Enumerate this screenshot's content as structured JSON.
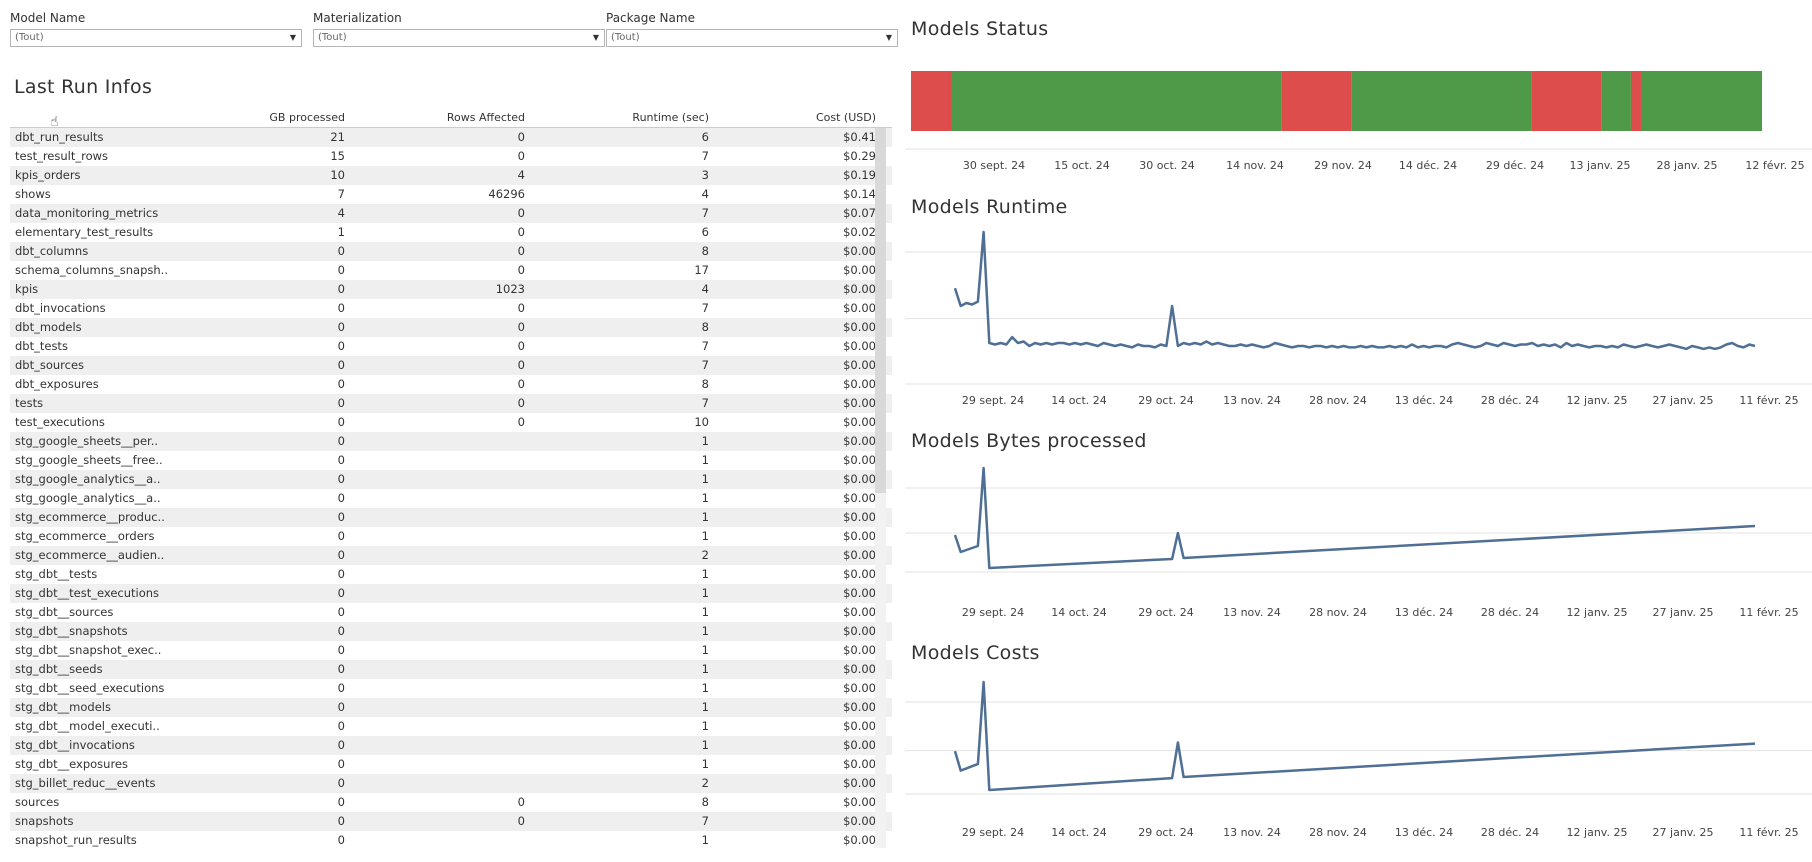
{
  "filters": [
    {
      "label": "Model Name",
      "value": "(Tout)"
    },
    {
      "label": "Materialization",
      "value": "(Tout)"
    },
    {
      "label": "Package Name",
      "value": "(Tout)"
    }
  ],
  "table": {
    "title": "Last Run Infos",
    "columns": [
      "",
      "GB processed",
      "Rows Affected",
      "Runtime (sec)",
      "Cost (USD)"
    ],
    "rows": [
      [
        "dbt_run_results",
        "21",
        "0",
        "6",
        "$0.41"
      ],
      [
        "test_result_rows",
        "15",
        "0",
        "7",
        "$0.29"
      ],
      [
        "kpis_orders",
        "10",
        "4",
        "3",
        "$0.19"
      ],
      [
        "shows",
        "7",
        "46296",
        "4",
        "$0.14"
      ],
      [
        "data_monitoring_metrics",
        "4",
        "0",
        "7",
        "$0.07"
      ],
      [
        "elementary_test_results",
        "1",
        "0",
        "6",
        "$0.02"
      ],
      [
        "dbt_columns",
        "0",
        "0",
        "8",
        "$0.00"
      ],
      [
        "schema_columns_snapsh..",
        "0",
        "0",
        "17",
        "$0.00"
      ],
      [
        "kpis",
        "0",
        "1023",
        "4",
        "$0.00"
      ],
      [
        "dbt_invocations",
        "0",
        "0",
        "7",
        "$0.00"
      ],
      [
        "dbt_models",
        "0",
        "0",
        "8",
        "$0.00"
      ],
      [
        "dbt_tests",
        "0",
        "0",
        "7",
        "$0.00"
      ],
      [
        "dbt_sources",
        "0",
        "0",
        "7",
        "$0.00"
      ],
      [
        "dbt_exposures",
        "0",
        "0",
        "8",
        "$0.00"
      ],
      [
        "tests",
        "0",
        "0",
        "7",
        "$0.00"
      ],
      [
        "test_executions",
        "0",
        "0",
        "10",
        "$0.00"
      ],
      [
        "stg_google_sheets__per..",
        "0",
        "",
        "1",
        "$0.00"
      ],
      [
        "stg_google_sheets__free..",
        "0",
        "",
        "1",
        "$0.00"
      ],
      [
        "stg_google_analytics__a..",
        "0",
        "",
        "1",
        "$0.00"
      ],
      [
        "stg_google_analytics__a..",
        "0",
        "",
        "1",
        "$0.00"
      ],
      [
        "stg_ecommerce__produc..",
        "0",
        "",
        "1",
        "$0.00"
      ],
      [
        "stg_ecommerce__orders",
        "0",
        "",
        "1",
        "$0.00"
      ],
      [
        "stg_ecommerce__audien..",
        "0",
        "",
        "2",
        "$0.00"
      ],
      [
        "stg_dbt__tests",
        "0",
        "",
        "1",
        "$0.00"
      ],
      [
        "stg_dbt__test_executions",
        "0",
        "",
        "1",
        "$0.00"
      ],
      [
        "stg_dbt__sources",
        "0",
        "",
        "1",
        "$0.00"
      ],
      [
        "stg_dbt__snapshots",
        "0",
        "",
        "1",
        "$0.00"
      ],
      [
        "stg_dbt__snapshot_exec..",
        "0",
        "",
        "1",
        "$0.00"
      ],
      [
        "stg_dbt__seeds",
        "0",
        "",
        "1",
        "$0.00"
      ],
      [
        "stg_dbt__seed_executions",
        "0",
        "",
        "1",
        "$0.00"
      ],
      [
        "stg_dbt__models",
        "0",
        "",
        "1",
        "$0.00"
      ],
      [
        "stg_dbt__model_executi..",
        "0",
        "",
        "1",
        "$0.00"
      ],
      [
        "stg_dbt__invocations",
        "0",
        "",
        "1",
        "$0.00"
      ],
      [
        "stg_dbt__exposures",
        "0",
        "",
        "1",
        "$0.00"
      ],
      [
        "stg_billet_reduc__events",
        "0",
        "",
        "2",
        "$0.00"
      ],
      [
        "sources",
        "0",
        "0",
        "8",
        "$0.00"
      ],
      [
        "snapshots",
        "0",
        "0",
        "7",
        "$0.00"
      ],
      [
        "snapshot_run_results",
        "0",
        "",
        "1",
        "$0.00"
      ]
    ]
  },
  "colors": {
    "success": "#4e9a48",
    "error": "#dc4d4c",
    "line": "#4f6f94",
    "grid": "#e3e3e3"
  },
  "charts": {
    "status": {
      "title": "Models Status",
      "ticks": [
        "30 sept. 24",
        "15 oct. 24",
        "30 oct. 24",
        "14 nov. 24",
        "29 nov. 24",
        "14 déc. 24",
        "29 déc. 24",
        "13 janv. 25",
        "28 janv. 25",
        "12 févr. 25"
      ]
    },
    "runtime": {
      "title": "Models Runtime"
    },
    "bytes": {
      "title": "Models Bytes processed"
    },
    "costs": {
      "title": "Models Costs"
    },
    "line_ticks": [
      "29 sept. 24",
      "14 oct. 24",
      "29 oct. 24",
      "13 nov. 24",
      "28 nov. 24",
      "13 déc. 24",
      "28 déc. 24",
      "12 janv. 25",
      "27 janv. 25",
      "11 févr. 25"
    ]
  },
  "chart_data": [
    {
      "type": "bar",
      "title": "Models Status",
      "x_ticks": [
        "30 sept. 24",
        "15 oct. 24",
        "30 oct. 24",
        "14 nov. 24",
        "29 nov. 24",
        "14 déc. 24",
        "29 déc. 24",
        "13 janv. 25",
        "28 janv. 25",
        "12 févr. 25"
      ],
      "segments": [
        {
          "status": "error",
          "from": 0.0,
          "to": 0.047
        },
        {
          "status": "success",
          "from": 0.047,
          "to": 0.435
        },
        {
          "status": "error",
          "from": 0.435,
          "to": 0.518
        },
        {
          "status": "success",
          "from": 0.518,
          "to": 0.729
        },
        {
          "status": "error",
          "from": 0.729,
          "to": 0.811
        },
        {
          "status": "success",
          "from": 0.811,
          "to": 0.846
        },
        {
          "status": "error",
          "from": 0.846,
          "to": 0.859
        },
        {
          "status": "success",
          "from": 0.859,
          "to": 1.0
        }
      ]
    },
    {
      "type": "line",
      "title": "Models Runtime",
      "x_ticks": [
        "29 sept. 24",
        "14 oct. 24",
        "29 oct. 24",
        "13 nov. 24",
        "28 nov. 24",
        "13 déc. 24",
        "28 déc. 24",
        "12 janv. 25",
        "27 janv. 25",
        "11 févr. 25"
      ],
      "x_days": [
        0,
        1,
        2,
        3,
        4,
        5,
        6,
        7,
        8,
        9,
        10,
        11,
        12,
        13,
        14,
        15,
        16,
        17,
        18,
        19,
        20,
        21,
        22,
        23,
        24,
        25,
        26,
        27,
        28,
        29,
        30,
        31,
        32,
        33,
        34,
        35,
        36,
        37,
        38,
        39,
        40,
        41,
        42,
        43,
        44,
        45,
        46,
        47,
        48,
        49,
        50,
        51,
        52,
        53,
        54,
        55,
        56,
        57,
        58,
        59,
        60,
        61,
        62,
        63,
        64,
        65,
        66,
        67,
        68,
        69,
        70,
        71,
        72,
        73,
        74,
        75,
        76,
        77,
        78,
        79,
        80,
        81,
        82,
        83,
        84,
        85,
        86,
        87,
        88,
        89,
        90,
        91,
        92,
        93,
        94,
        95,
        96,
        97,
        98,
        99,
        100,
        101,
        102,
        103,
        104,
        105,
        106,
        107,
        108,
        109,
        110,
        111,
        112,
        113,
        114,
        115,
        116,
        117,
        118,
        119,
        120,
        121,
        122,
        123,
        124,
        125,
        126,
        127,
        128,
        129,
        130,
        131,
        132,
        133,
        134,
        135,
        136,
        137,
        138,
        139,
        140
      ],
      "values": [
        0.62,
        0.5,
        0.52,
        0.51,
        0.53,
        1.0,
        0.25,
        0.24,
        0.25,
        0.24,
        0.29,
        0.25,
        0.26,
        0.23,
        0.25,
        0.24,
        0.25,
        0.24,
        0.25,
        0.25,
        0.24,
        0.25,
        0.24,
        0.25,
        0.24,
        0.23,
        0.25,
        0.24,
        0.23,
        0.24,
        0.23,
        0.22,
        0.24,
        0.23,
        0.23,
        0.22,
        0.24,
        0.23,
        0.5,
        0.23,
        0.25,
        0.24,
        0.25,
        0.24,
        0.26,
        0.24,
        0.25,
        0.24,
        0.23,
        0.23,
        0.24,
        0.23,
        0.24,
        0.23,
        0.22,
        0.23,
        0.25,
        0.24,
        0.23,
        0.22,
        0.23,
        0.23,
        0.22,
        0.23,
        0.23,
        0.22,
        0.23,
        0.22,
        0.23,
        0.22,
        0.22,
        0.23,
        0.22,
        0.23,
        0.22,
        0.22,
        0.23,
        0.22,
        0.23,
        0.22,
        0.24,
        0.22,
        0.23,
        0.22,
        0.23,
        0.23,
        0.22,
        0.24,
        0.25,
        0.24,
        0.23,
        0.22,
        0.23,
        0.25,
        0.24,
        0.23,
        0.25,
        0.24,
        0.23,
        0.24,
        0.24,
        0.25,
        0.23,
        0.24,
        0.23,
        0.24,
        0.22,
        0.25,
        0.23,
        0.24,
        0.23,
        0.22,
        0.23,
        0.23,
        0.22,
        0.23,
        0.22,
        0.24,
        0.23,
        0.22,
        0.23,
        0.24,
        0.23,
        0.22,
        0.23,
        0.24,
        0.23,
        0.22,
        0.21,
        0.23,
        0.22,
        0.21,
        0.22,
        0.21,
        0.22,
        0.24,
        0.25,
        0.23,
        0.22,
        0.24,
        0.23
      ]
    },
    {
      "type": "line",
      "title": "Models Bytes processed",
      "x_ticks": [
        "29 sept. 24",
        "14 oct. 24",
        "29 oct. 24",
        "13 nov. 24",
        "28 nov. 24",
        "13 déc. 24",
        "28 déc. 24",
        "12 janv. 25",
        "27 janv. 25",
        "11 févr. 25"
      ],
      "x_days": [
        0,
        1,
        2,
        3,
        4,
        5,
        6,
        38,
        39,
        40,
        140
      ],
      "values": [
        0.33,
        0.16,
        0.18,
        0.2,
        0.22,
        1.0,
        0.0,
        0.09,
        0.35,
        0.1,
        0.42
      ]
    },
    {
      "type": "line",
      "title": "Models Costs",
      "x_ticks": [
        "29 sept. 24",
        "14 oct. 24",
        "29 oct. 24",
        "13 nov. 24",
        "28 nov. 24",
        "13 déc. 24",
        "28 déc. 24",
        "12 janv. 25",
        "27 janv. 25",
        "11 févr. 25"
      ],
      "x_days": [
        0,
        1,
        2,
        3,
        4,
        5,
        6,
        38,
        39,
        40,
        140
      ],
      "values": [
        0.36,
        0.18,
        0.2,
        0.22,
        0.24,
        1.0,
        0.0,
        0.11,
        0.44,
        0.12,
        0.43
      ]
    }
  ]
}
